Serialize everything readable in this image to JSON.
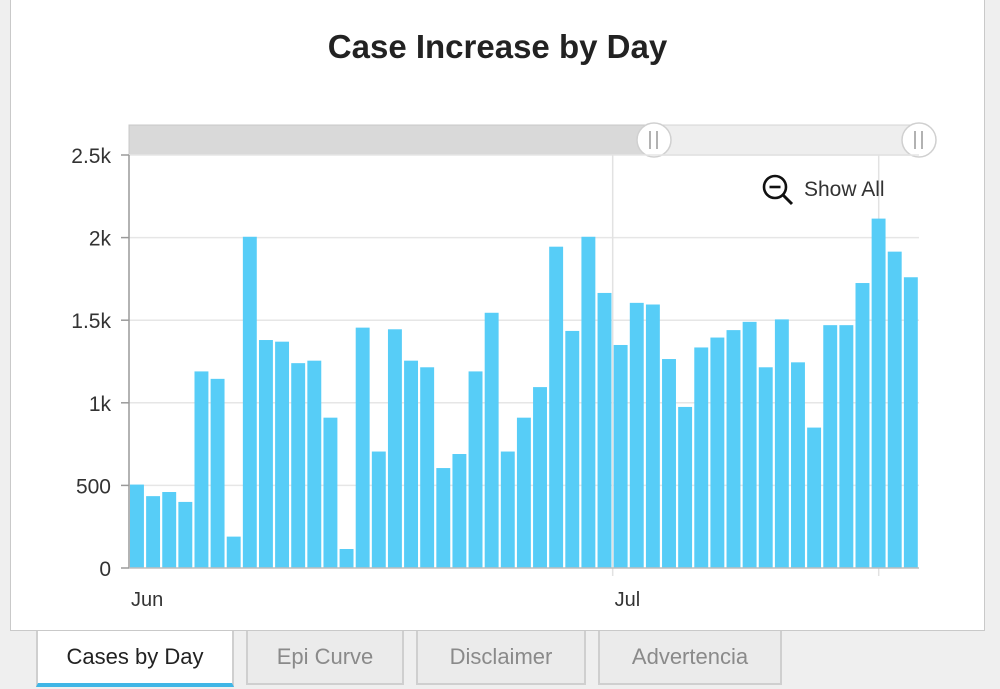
{
  "chart_data": {
    "type": "bar",
    "title": "Case Increase by Day",
    "ylabel": "",
    "xlabel": "",
    "ylim": [
      0,
      2500
    ],
    "yticks": [
      {
        "value": 0,
        "label": "0"
      },
      {
        "value": 500,
        "label": "500"
      },
      {
        "value": 1000,
        "label": "1k"
      },
      {
        "value": 1500,
        "label": "1.5k"
      },
      {
        "value": 2000,
        "label": "2k"
      },
      {
        "value": 2500,
        "label": "2.5k"
      }
    ],
    "xticks": [
      {
        "index": 0,
        "label": "Jun"
      },
      {
        "index": 30,
        "label": "Jul"
      }
    ],
    "values": [
      505,
      435,
      460,
      400,
      1190,
      1145,
      190,
      2005,
      1380,
      1370,
      1240,
      1255,
      910,
      115,
      1455,
      705,
      1445,
      1255,
      1215,
      605,
      690,
      1190,
      1545,
      705,
      910,
      1095,
      1945,
      1435,
      2005,
      1665,
      1350,
      1605,
      1595,
      1265,
      975,
      1335,
      1395,
      1440,
      1490,
      1215,
      1505,
      1245,
      850,
      1470,
      1470,
      1725,
      2115,
      1915,
      1760
    ],
    "bar_color": "#57cdf7",
    "grid": true
  },
  "controls": {
    "zoom_label": "Show All",
    "zoom_icon": "zoom-out-icon",
    "slider_handle_icon": "grip-icon"
  },
  "tabs": [
    {
      "label": "Cases by Day",
      "active": true
    },
    {
      "label": "Epi Curve",
      "active": false
    },
    {
      "label": "Disclaimer",
      "active": false
    },
    {
      "label": "Advertencia",
      "active": false
    }
  ]
}
